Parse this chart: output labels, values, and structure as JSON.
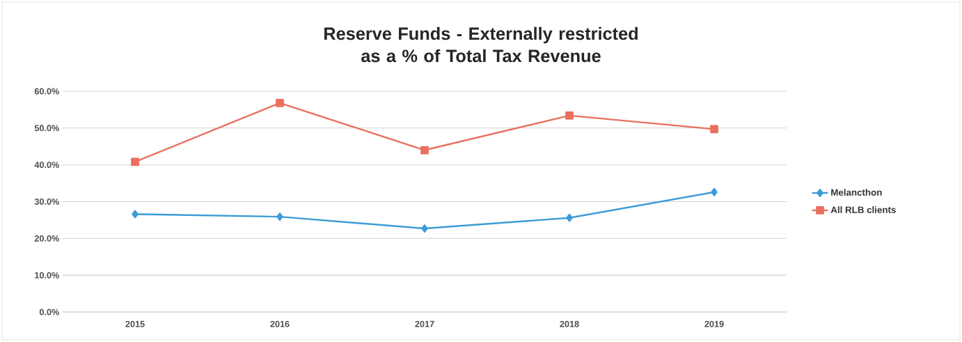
{
  "chart_data": {
    "type": "line",
    "title": "Reserve Funds - Externally restricted as a % of Total Tax Revenue",
    "categories": [
      "2015",
      "2016",
      "2017",
      "2018",
      "2019"
    ],
    "series": [
      {
        "name": "Melancthon",
        "color": "#3d9bd6",
        "marker": "diamond",
        "values": [
          26.6,
          25.9,
          22.7,
          25.6,
          32.6
        ]
      },
      {
        "name": "All RLB clients",
        "color": "#e8705f",
        "marker": "square",
        "values": [
          40.8,
          56.8,
          44.0,
          53.4,
          49.7
        ]
      }
    ],
    "ylim": [
      0,
      60
    ],
    "yticks": [
      {
        "value": 0,
        "label": "0.0%"
      },
      {
        "value": 10,
        "label": "10.0%"
      },
      {
        "value": 20,
        "label": "20.0%"
      },
      {
        "value": 30,
        "label": "30.0%"
      },
      {
        "value": 40,
        "label": "40.0%"
      },
      {
        "value": 50,
        "label": "50.0%"
      },
      {
        "value": 60,
        "label": "60.0%"
      }
    ],
    "grid": "y",
    "legend": "right",
    "line_style": "solid"
  }
}
